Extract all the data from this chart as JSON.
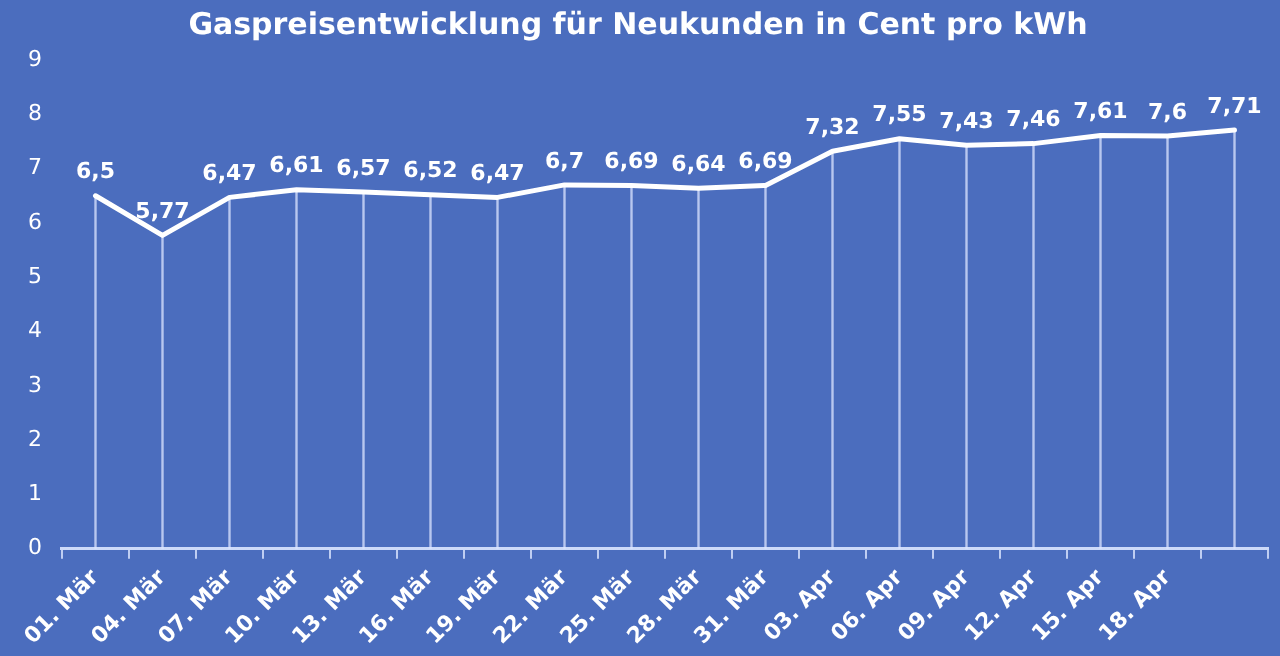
{
  "chart_data": {
    "type": "line",
    "title": "Gaspreisentwicklung für Neukunden in Cent pro kWh",
    "categories": [
      "01. Mär",
      "04. Mär",
      "07. Mär",
      "10. Mär",
      "13. Mär",
      "16. Mär",
      "19. Mär",
      "22. Mär",
      "25. Mär",
      "28. Mär",
      "31. Mär",
      "03. Apr",
      "06. Apr",
      "09. Apr",
      "12. Apr",
      "15. Apr",
      "18. Apr",
      null
    ],
    "series": [
      {
        "color": "#ffffff",
        "values": [
          6.5,
          5.77,
          6.47,
          6.61,
          6.57,
          6.52,
          6.47,
          6.7,
          6.69,
          6.64,
          6.69,
          7.32,
          7.55,
          7.43,
          7.46,
          7.61,
          7.6,
          7.71
        ],
        "value_labels": [
          "6,5",
          "5,77",
          "6,47",
          "6,61",
          "6,57",
          "6,52",
          "6,47",
          "6,7",
          "6,69",
          "6,64",
          "6,69",
          "7,32",
          "7,55",
          "7,43",
          "7,46",
          "7,61",
          "7,6",
          "7,71"
        ]
      }
    ],
    "ylim": [
      0,
      9
    ],
    "yticks": [
      0,
      1,
      2,
      3,
      4,
      5,
      6,
      7,
      8,
      9
    ],
    "grid": "x",
    "legend": false,
    "marker": "none",
    "line_style": "solid"
  }
}
